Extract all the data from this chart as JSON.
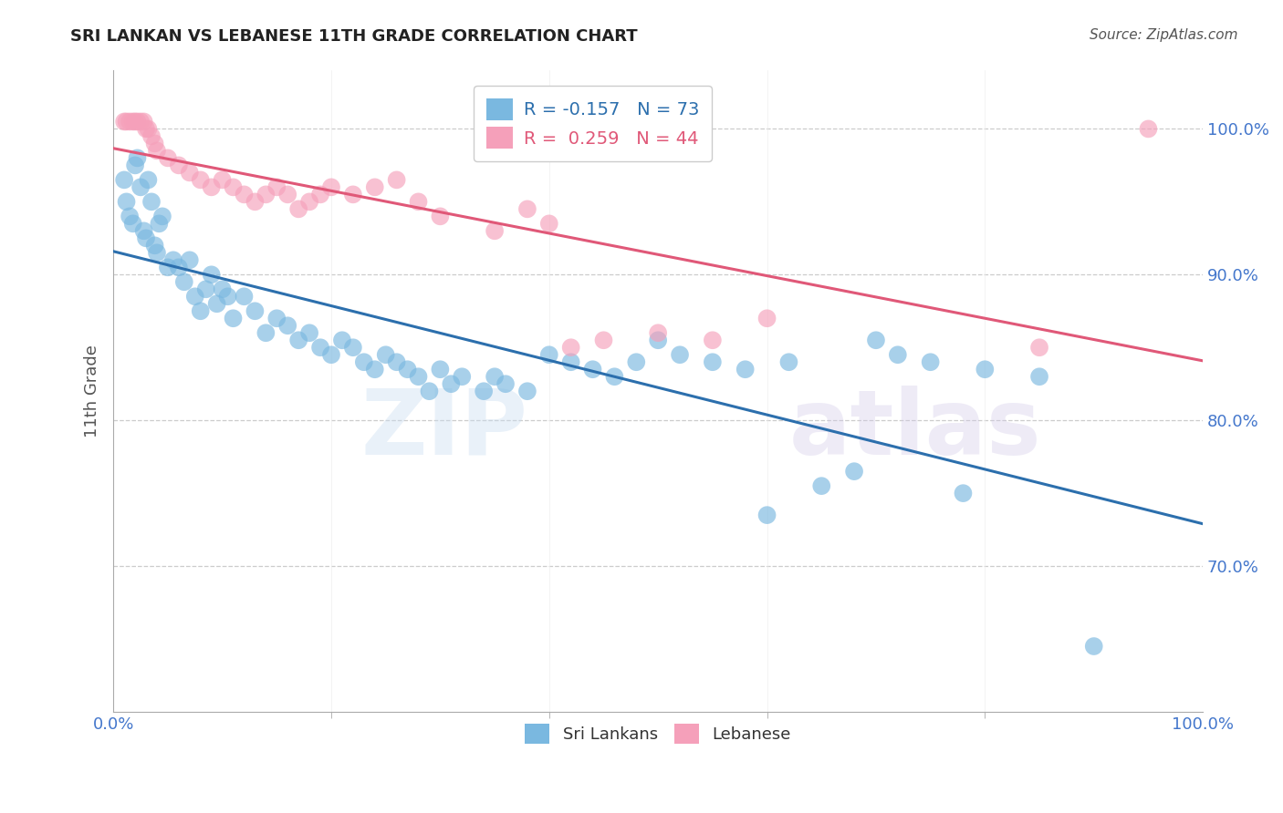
{
  "title": "SRI LANKAN VS LEBANESE 11TH GRADE CORRELATION CHART",
  "source": "Source: ZipAtlas.com",
  "ylabel": "11th Grade",
  "watermark_text": "ZIPatlas",
  "sri_lankan_r": -0.157,
  "sri_lankan_n": 73,
  "lebanese_r": 0.259,
  "lebanese_n": 44,
  "sri_lankan_color": "#7ab8e0",
  "lebanese_color": "#f5a0ba",
  "sri_lankan_line_color": "#2c6fad",
  "lebanese_line_color": "#e05878",
  "background_color": "#ffffff",
  "grid_color": "#cccccc",
  "axis_label_color": "#4477cc",
  "title_color": "#222222",
  "yticks": [
    100.0,
    90.0,
    80.0,
    70.0
  ],
  "ylim": [
    60.0,
    104.0
  ],
  "xlim": [
    0.0,
    100.0
  ],
  "sri_lankans_x": [
    1.0,
    1.2,
    1.5,
    1.8,
    2.0,
    2.2,
    2.5,
    2.8,
    3.0,
    3.2,
    3.5,
    3.8,
    4.0,
    4.2,
    4.5,
    5.0,
    5.5,
    6.0,
    6.5,
    7.0,
    7.5,
    8.0,
    8.5,
    9.0,
    9.5,
    10.0,
    10.5,
    11.0,
    12.0,
    13.0,
    14.0,
    15.0,
    16.0,
    17.0,
    18.0,
    19.0,
    20.0,
    21.0,
    22.0,
    23.0,
    24.0,
    25.0,
    26.0,
    27.0,
    28.0,
    29.0,
    30.0,
    31.0,
    32.0,
    34.0,
    35.0,
    36.0,
    38.0,
    40.0,
    42.0,
    44.0,
    46.0,
    48.0,
    50.0,
    52.0,
    55.0,
    58.0,
    60.0,
    62.0,
    65.0,
    68.0,
    70.0,
    72.0,
    75.0,
    78.0,
    80.0,
    85.0,
    90.0
  ],
  "sri_lankans_y": [
    96.5,
    95.0,
    94.0,
    93.5,
    97.5,
    98.0,
    96.0,
    93.0,
    92.5,
    96.5,
    95.0,
    92.0,
    91.5,
    93.5,
    94.0,
    90.5,
    91.0,
    90.5,
    89.5,
    91.0,
    88.5,
    87.5,
    89.0,
    90.0,
    88.0,
    89.0,
    88.5,
    87.0,
    88.5,
    87.5,
    86.0,
    87.0,
    86.5,
    85.5,
    86.0,
    85.0,
    84.5,
    85.5,
    85.0,
    84.0,
    83.5,
    84.5,
    84.0,
    83.5,
    83.0,
    82.0,
    83.5,
    82.5,
    83.0,
    82.0,
    83.0,
    82.5,
    82.0,
    84.5,
    84.0,
    83.5,
    83.0,
    84.0,
    85.5,
    84.5,
    84.0,
    83.5,
    73.5,
    84.0,
    75.5,
    76.5,
    85.5,
    84.5,
    84.0,
    75.0,
    83.5,
    83.0,
    64.5
  ],
  "lebanese_x": [
    1.0,
    1.2,
    1.5,
    1.8,
    2.0,
    2.2,
    2.5,
    2.8,
    3.0,
    3.2,
    3.5,
    3.8,
    4.0,
    5.0,
    6.0,
    7.0,
    8.0,
    9.0,
    10.0,
    11.0,
    12.0,
    13.0,
    14.0,
    15.0,
    16.0,
    17.0,
    18.0,
    19.0,
    20.0,
    22.0,
    24.0,
    26.0,
    28.0,
    30.0,
    35.0,
    38.0,
    40.0,
    42.0,
    45.0,
    50.0,
    55.0,
    60.0,
    85.0,
    95.0
  ],
  "lebanese_y": [
    100.5,
    100.5,
    100.5,
    100.5,
    100.5,
    100.5,
    100.5,
    100.5,
    100.0,
    100.0,
    99.5,
    99.0,
    98.5,
    98.0,
    97.5,
    97.0,
    96.5,
    96.0,
    96.5,
    96.0,
    95.5,
    95.0,
    95.5,
    96.0,
    95.5,
    94.5,
    95.0,
    95.5,
    96.0,
    95.5,
    96.0,
    96.5,
    95.0,
    94.0,
    93.0,
    94.5,
    93.5,
    85.0,
    85.5,
    86.0,
    85.5,
    87.0,
    85.0,
    100.0
  ]
}
